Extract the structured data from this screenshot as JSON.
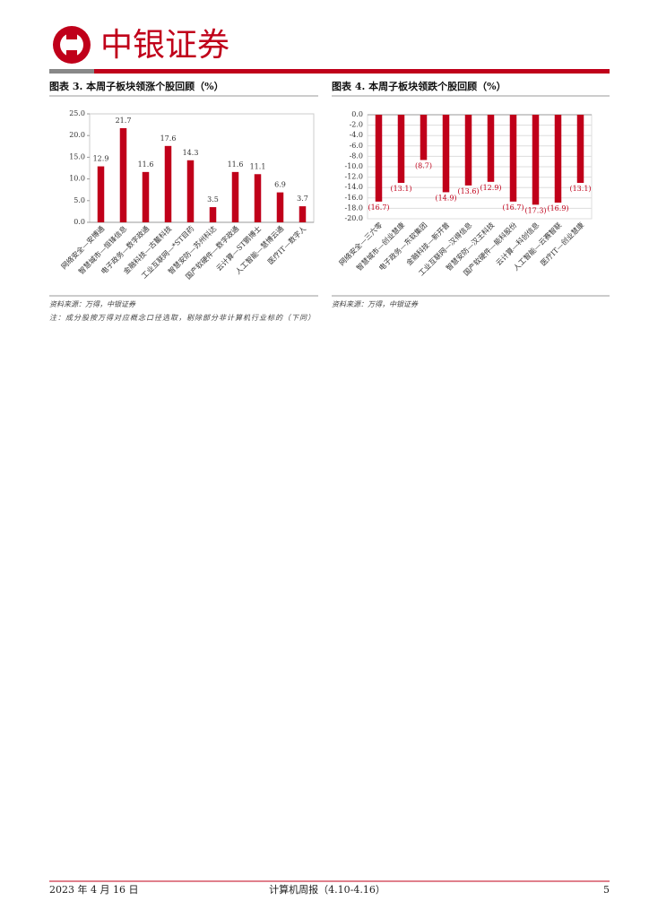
{
  "header": {
    "brand": "中银证券"
  },
  "chart_data": [
    {
      "type": "bar",
      "title": "图表 3. 本周子板块领涨个股回顾（%）",
      "categories": [
        "网络安全—安博通",
        "智慧城市—恒锋信息",
        "电子政务—数字政通",
        "金融科技—古鳌科技",
        "工业互联网—*ST目药",
        "智慧安防—苏州科达",
        "国产软硬件—数字政通",
        "云计算—ST鹏博士",
        "人工智能—慧博云通",
        "医疗IT—数字人"
      ],
      "values": [
        12.9,
        21.7,
        11.6,
        17.6,
        14.3,
        3.5,
        11.6,
        11.1,
        6.9,
        3.7
      ],
      "color": "#c0001a",
      "label_color": "#333333",
      "ylim": [
        0,
        25
      ],
      "yticks": [
        {
          "value": 0,
          "label": "0.0"
        },
        {
          "value": 5,
          "label": "5.0"
        },
        {
          "value": 10,
          "label": "10.0"
        },
        {
          "value": 15,
          "label": "15.0"
        },
        {
          "value": 20,
          "label": "20.0"
        },
        {
          "value": 25,
          "label": "25.0"
        }
      ],
      "grid": false
    },
    {
      "type": "bar",
      "title": "图表 4. 本周子板块领跌个股回顾（%）",
      "categories": [
        "网络安全—三六零",
        "智慧城市—创业慧康",
        "电子政务—东软集团",
        "金融科技—新开普",
        "工业互联网—汉得信息",
        "智慧安防—汉王科技",
        "国产软硬件—能科股份",
        "云计算—科创信息",
        "人工智能—云赛智联",
        "医疗IT—创业慧康"
      ],
      "values": [
        -16.7,
        -13.1,
        -8.7,
        -14.9,
        -13.6,
        -12.9,
        -16.7,
        -17.3,
        -16.9,
        -13.1
      ],
      "value_labels": [
        "(16.7)",
        "(13.1)",
        "(8.7)",
        "(14.9)",
        "(13.6)",
        "(12.9)",
        "(16.7)",
        "(17.3)",
        "(16.9)",
        "(13.1)"
      ],
      "color": "#c0001a",
      "label_color": "#c0001a",
      "ylim": [
        -20,
        0
      ],
      "yticks": [
        {
          "value": 0,
          "label": "0.0"
        },
        {
          "value": -2,
          "label": "-2.0"
        },
        {
          "value": -4,
          "label": "-4.0"
        },
        {
          "value": -6,
          "label": "-6.0"
        },
        {
          "value": -8,
          "label": "-8.0"
        },
        {
          "value": -10,
          "label": "-10.0"
        },
        {
          "value": -12,
          "label": "-12.0"
        },
        {
          "value": -14,
          "label": "-14.0"
        },
        {
          "value": -16,
          "label": "-16.0"
        },
        {
          "value": -18,
          "label": "-18.0"
        },
        {
          "value": -20,
          "label": "-20.0"
        }
      ],
      "grid": true
    }
  ],
  "sources": [
    "资料来源：万得，中银证券",
    "资料来源：万得，中银证券"
  ],
  "note": "注：成分股按万得对应概念口径选取，剔除部分非计算机行业标的（下同）",
  "footer": {
    "date": "2023 年 4 月 16 日",
    "report": "计算机周报（4.10-4.16）",
    "page": "5"
  }
}
